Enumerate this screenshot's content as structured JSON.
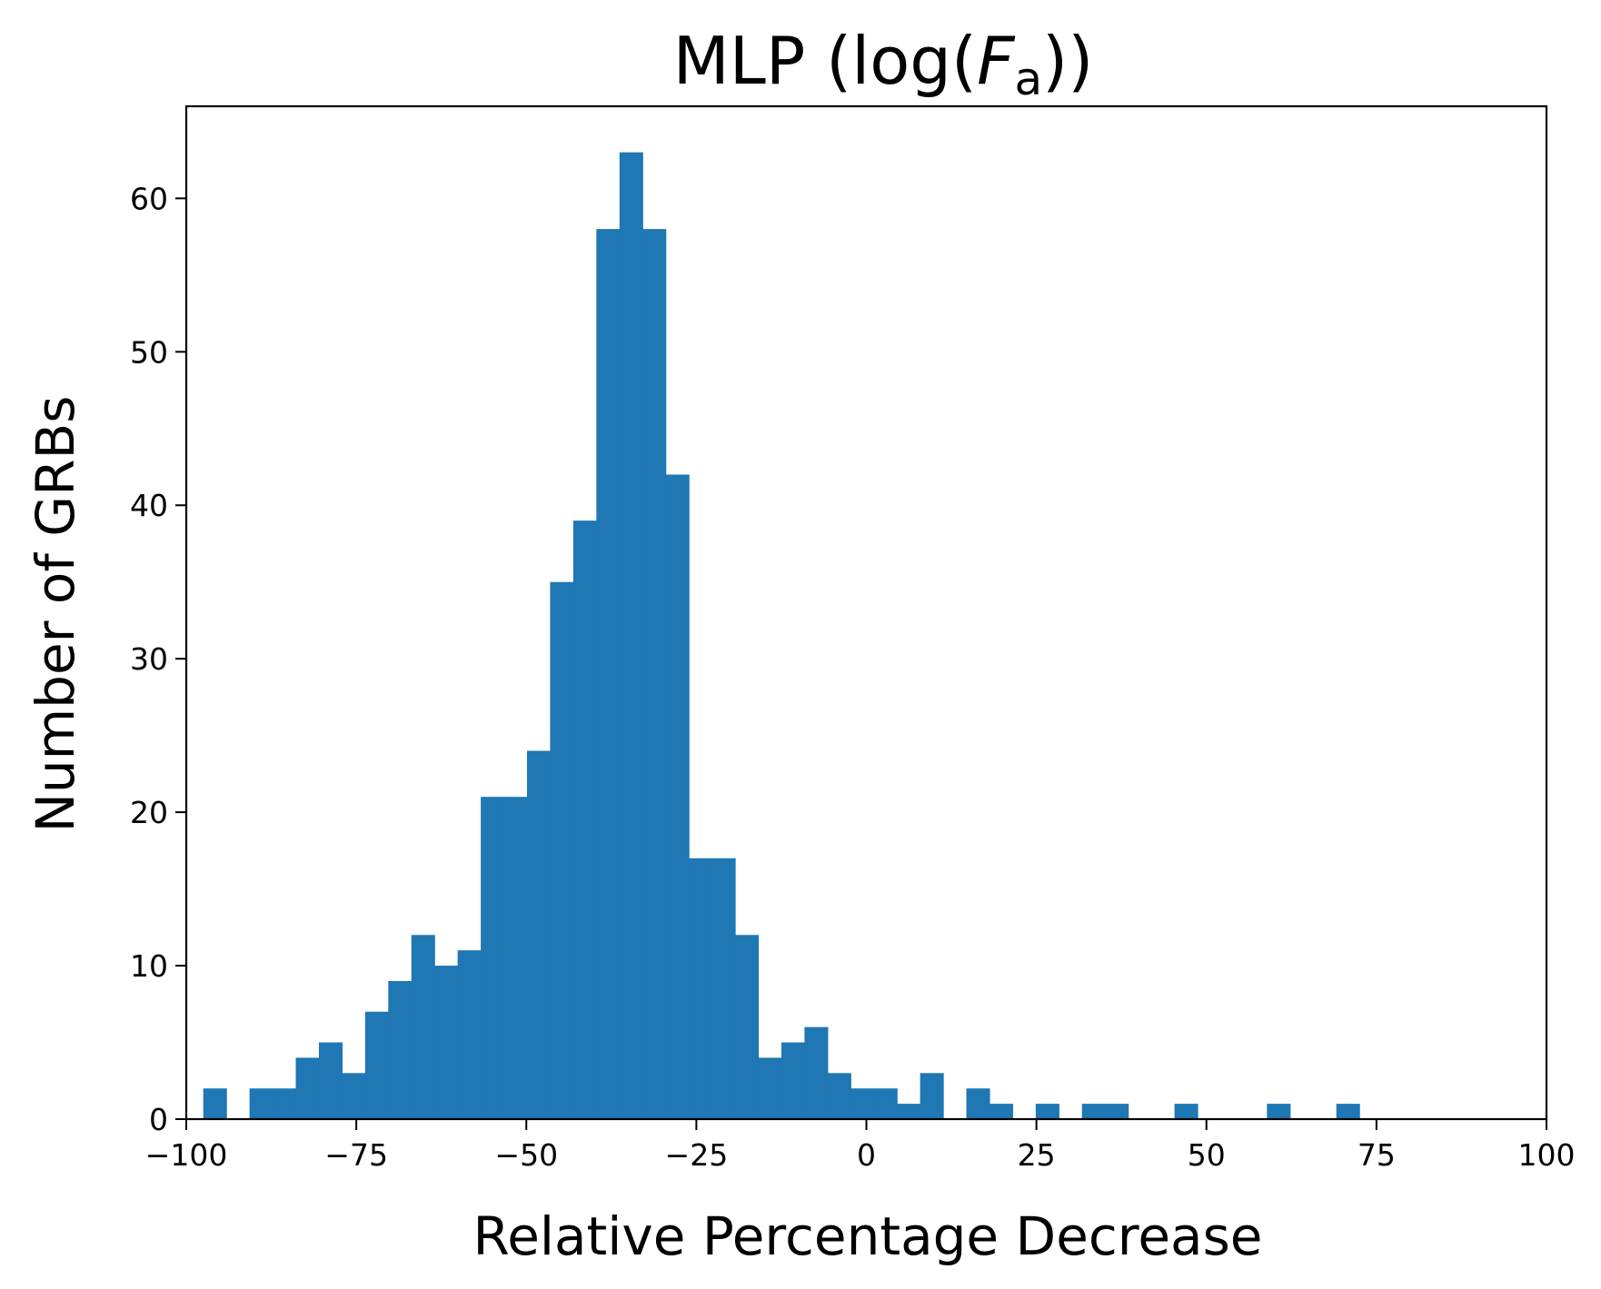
{
  "chart_data": {
    "type": "bar",
    "title": {
      "main": "MLP (log(",
      "var": "F",
      "sub": "a",
      "close": "))"
    },
    "xlabel": "Relative Percentage Decrease",
    "ylabel": "Number of GRBs",
    "xlim": [
      -100,
      100
    ],
    "ylim": [
      0,
      66
    ],
    "grid": false,
    "legend": "none",
    "bar_color": "#1f77b4",
    "bin_width": 3.4,
    "x_ticks": [
      -100,
      -75,
      -50,
      -25,
      0,
      25,
      50,
      75,
      100
    ],
    "x_tick_labels": [
      "−100",
      "−75",
      "−50",
      "−25",
      "0",
      "25",
      "50",
      "75",
      "100"
    ],
    "y_ticks": [
      0,
      10,
      20,
      30,
      40,
      50,
      60
    ],
    "y_tick_labels": [
      "0",
      "10",
      "20",
      "30",
      "40",
      "50",
      "60"
    ],
    "bin_starts": [
      -97.5,
      -94.1,
      -90.7,
      -87.3,
      -83.9,
      -80.5,
      -77.1,
      -73.7,
      -70.3,
      -66.9,
      -63.5,
      -60.1,
      -56.7,
      -53.3,
      -49.9,
      -46.5,
      -43.1,
      -39.7,
      -36.3,
      -32.9,
      -29.5,
      -26.1,
      -22.7,
      -19.3,
      -15.9,
      -12.5,
      -9.1,
      -5.7,
      -2.3,
      1.1,
      4.5,
      7.9,
      11.3,
      14.7,
      18.1,
      21.5,
      24.9,
      28.3,
      31.7,
      35.1,
      38.5,
      41.9,
      45.3,
      48.7,
      52.1,
      55.5,
      58.9,
      62.3,
      65.7,
      69.1
    ],
    "counts": [
      2,
      0,
      2,
      2,
      4,
      5,
      3,
      7,
      9,
      12,
      10,
      11,
      21,
      21,
      24,
      35,
      39,
      58,
      63,
      58,
      42,
      17,
      17,
      12,
      4,
      5,
      6,
      3,
      2,
      2,
      1,
      3,
      0,
      2,
      1,
      0,
      1,
      0,
      1,
      1,
      0,
      0,
      1,
      0,
      0,
      0,
      1,
      0,
      0,
      1
    ]
  }
}
